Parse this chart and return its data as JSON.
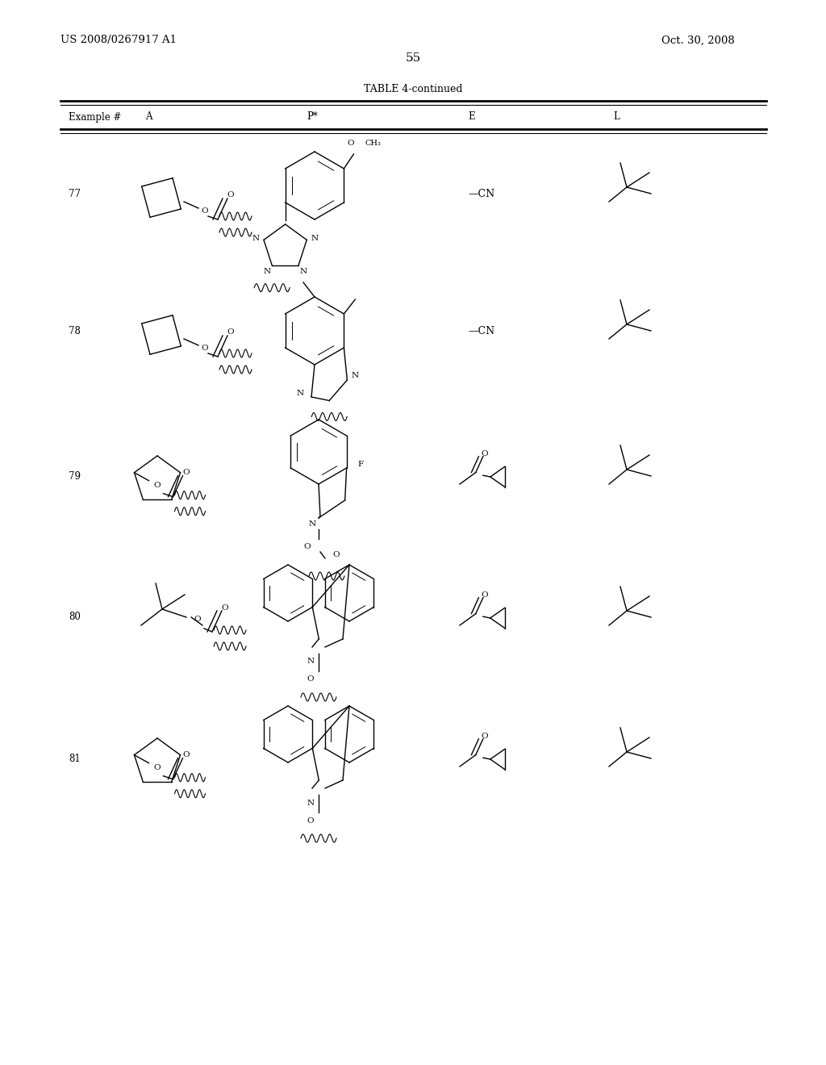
{
  "page_number": "55",
  "patent_left": "US 2008/0267917 A1",
  "patent_right": "Oct. 30, 2008",
  "table_title": "TABLE 4-continued",
  "col_headers": [
    "Example #",
    "A",
    "P*",
    "E",
    "L"
  ],
  "rows": [
    77,
    78,
    79,
    80,
    81
  ],
  "background": "#ffffff",
  "text_color": "#000000",
  "line_color": "#000000"
}
